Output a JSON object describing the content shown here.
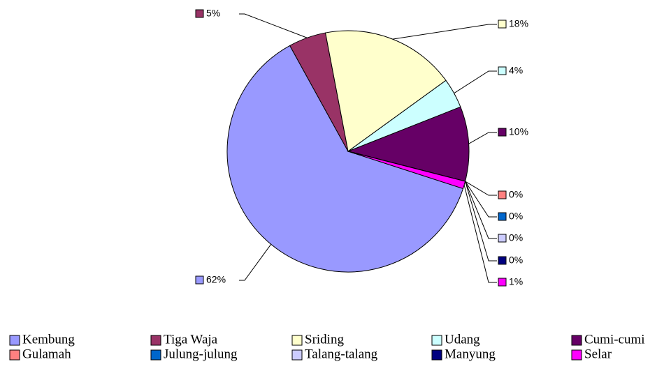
{
  "chart_data": {
    "type": "pie",
    "categories": [
      "Kembung",
      "Tiga Waja",
      "Sriding",
      "Udang",
      "Cumi-cumi",
      "Gulamah",
      "Julung-julung",
      "Talang-talang",
      "Manyung",
      "Selar"
    ],
    "values": [
      62,
      5,
      18,
      4,
      10,
      0,
      0,
      0,
      0,
      1
    ],
    "value_labels": [
      "62%",
      "5%",
      "18%",
      "4%",
      "10%",
      "0%",
      "0%",
      "0%",
      "0%",
      "1%"
    ],
    "colors": [
      "#9999ff",
      "#993366",
      "#ffffcc",
      "#ccffff",
      "#660066",
      "#ff8080",
      "#0066cc",
      "#ccccff",
      "#000080",
      "#ff00ff"
    ],
    "start_angle": 108,
    "legend": "bottom"
  }
}
